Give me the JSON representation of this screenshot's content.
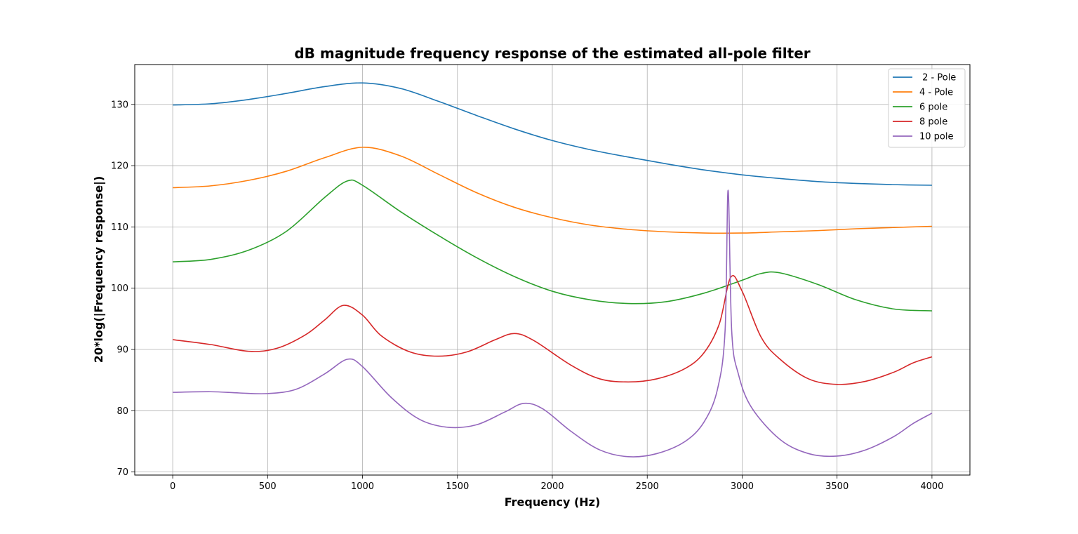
{
  "chart_data": {
    "type": "line",
    "title": "dB magnitude frequency response of the estimated all-pole filter",
    "xlabel": "Frequency (Hz)",
    "ylabel": "20*log(|Frequency response|)",
    "xlim": [
      -200,
      4200
    ],
    "ylim": [
      69.5,
      136.5
    ],
    "xticks": [
      0,
      500,
      1000,
      1500,
      2000,
      2500,
      3000,
      3500,
      4000
    ],
    "yticks": [
      70,
      80,
      90,
      100,
      110,
      120,
      130
    ],
    "grid": true,
    "legend_position": "top-right",
    "series": [
      {
        "name": " 2 - Pole",
        "color": "#1f77b4",
        "points": [
          [
            0,
            129.9
          ],
          [
            200,
            130.1
          ],
          [
            400,
            130.8
          ],
          [
            600,
            131.8
          ],
          [
            800,
            132.9
          ],
          [
            1000,
            133.5
          ],
          [
            1200,
            132.6
          ],
          [
            1400,
            130.5
          ],
          [
            1600,
            128.2
          ],
          [
            1800,
            126.0
          ],
          [
            2000,
            124.1
          ],
          [
            2200,
            122.6
          ],
          [
            2400,
            121.4
          ],
          [
            2600,
            120.3
          ],
          [
            2800,
            119.3
          ],
          [
            3000,
            118.5
          ],
          [
            3200,
            117.9
          ],
          [
            3400,
            117.4
          ],
          [
            3600,
            117.1
          ],
          [
            3800,
            116.9
          ],
          [
            4000,
            116.8
          ]
        ]
      },
      {
        "name": "4 - Pole",
        "color": "#ff7f0e",
        "points": [
          [
            0,
            116.4
          ],
          [
            200,
            116.7
          ],
          [
            400,
            117.6
          ],
          [
            600,
            119.1
          ],
          [
            800,
            121.3
          ],
          [
            1000,
            123.0
          ],
          [
            1200,
            121.6
          ],
          [
            1400,
            118.6
          ],
          [
            1600,
            115.6
          ],
          [
            1800,
            113.2
          ],
          [
            2000,
            111.5
          ],
          [
            2200,
            110.3
          ],
          [
            2400,
            109.6
          ],
          [
            2600,
            109.2
          ],
          [
            2800,
            109.0
          ],
          [
            3000,
            109.0
          ],
          [
            3200,
            109.2
          ],
          [
            3400,
            109.4
          ],
          [
            3600,
            109.7
          ],
          [
            3800,
            109.9
          ],
          [
            4000,
            110.1
          ]
        ]
      },
      {
        "name": "6 pole",
        "color": "#2ca02c",
        "points": [
          [
            0,
            104.3
          ],
          [
            200,
            104.7
          ],
          [
            400,
            106.2
          ],
          [
            600,
            109.3
          ],
          [
            800,
            114.8
          ],
          [
            920,
            117.5
          ],
          [
            1000,
            116.8
          ],
          [
            1200,
            112.5
          ],
          [
            1400,
            108.6
          ],
          [
            1600,
            105.0
          ],
          [
            1800,
            101.9
          ],
          [
            2000,
            99.5
          ],
          [
            2200,
            98.1
          ],
          [
            2400,
            97.5
          ],
          [
            2600,
            97.8
          ],
          [
            2800,
            99.2
          ],
          [
            3000,
            101.3
          ],
          [
            3100,
            102.4
          ],
          [
            3200,
            102.5
          ],
          [
            3400,
            100.6
          ],
          [
            3600,
            98.1
          ],
          [
            3800,
            96.6
          ],
          [
            4000,
            96.3
          ]
        ]
      },
      {
        "name": "8 pole",
        "color": "#d62728",
        "points": [
          [
            0,
            91.6
          ],
          [
            200,
            90.8
          ],
          [
            400,
            89.7
          ],
          [
            550,
            90.2
          ],
          [
            700,
            92.4
          ],
          [
            800,
            94.8
          ],
          [
            900,
            97.2
          ],
          [
            1000,
            95.6
          ],
          [
            1100,
            92.2
          ],
          [
            1250,
            89.6
          ],
          [
            1400,
            88.9
          ],
          [
            1550,
            89.6
          ],
          [
            1700,
            91.6
          ],
          [
            1800,
            92.6
          ],
          [
            1900,
            91.5
          ],
          [
            2100,
            87.4
          ],
          [
            2250,
            85.2
          ],
          [
            2400,
            84.7
          ],
          [
            2550,
            85.2
          ],
          [
            2700,
            86.9
          ],
          [
            2800,
            89.5
          ],
          [
            2880,
            94.2
          ],
          [
            2940,
            101.8
          ],
          [
            3000,
            99.5
          ],
          [
            3100,
            92.0
          ],
          [
            3200,
            88.4
          ],
          [
            3350,
            85.2
          ],
          [
            3500,
            84.3
          ],
          [
            3650,
            84.8
          ],
          [
            3800,
            86.3
          ],
          [
            3900,
            87.8
          ],
          [
            4000,
            88.8
          ]
        ]
      },
      {
        "name": "10 pole",
        "color": "#9467bd",
        "points": [
          [
            0,
            83.0
          ],
          [
            200,
            83.1
          ],
          [
            350,
            82.9
          ],
          [
            500,
            82.8
          ],
          [
            650,
            83.5
          ],
          [
            800,
            86.0
          ],
          [
            920,
            88.4
          ],
          [
            1000,
            87.2
          ],
          [
            1150,
            82.2
          ],
          [
            1300,
            78.6
          ],
          [
            1450,
            77.3
          ],
          [
            1600,
            77.7
          ],
          [
            1750,
            79.8
          ],
          [
            1850,
            81.2
          ],
          [
            1950,
            80.3
          ],
          [
            2100,
            76.6
          ],
          [
            2250,
            73.6
          ],
          [
            2400,
            72.5
          ],
          [
            2550,
            73.0
          ],
          [
            2700,
            75.0
          ],
          [
            2800,
            78.2
          ],
          [
            2870,
            83.5
          ],
          [
            2910,
            93.0
          ],
          [
            2926,
            116.0
          ],
          [
            2945,
            93.0
          ],
          [
            2980,
            86.0
          ],
          [
            3050,
            80.5
          ],
          [
            3200,
            75.3
          ],
          [
            3350,
            73.0
          ],
          [
            3500,
            72.6
          ],
          [
            3650,
            73.6
          ],
          [
            3800,
            75.8
          ],
          [
            3900,
            77.9
          ],
          [
            4000,
            79.6
          ]
        ]
      }
    ]
  }
}
